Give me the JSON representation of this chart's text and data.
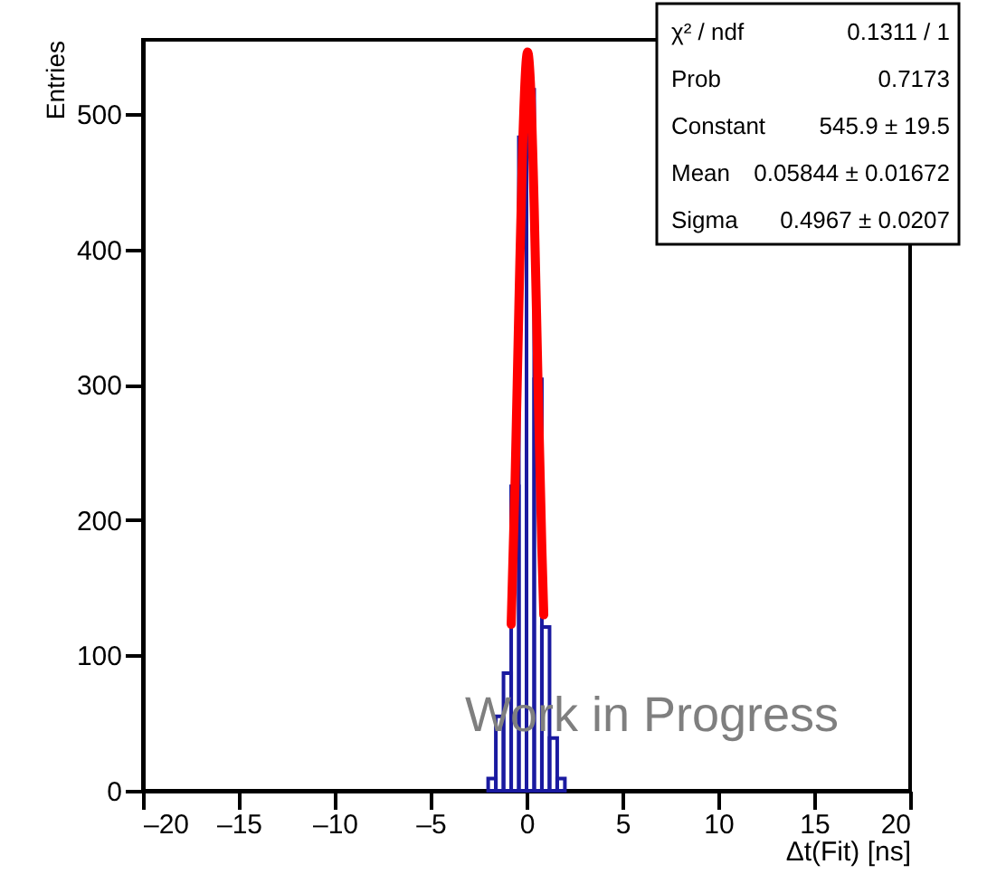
{
  "chart_data": {
    "type": "histogram",
    "xlabel": "Δt(Fit) [ns]",
    "ylabel": "Entries",
    "bins": [
      -2.0,
      -1.6,
      -1.2,
      -0.8,
      -0.4,
      0.0,
      0.4,
      0.8,
      1.2,
      1.6,
      2.0
    ],
    "values": [
      9,
      55,
      87,
      225,
      483,
      518,
      304,
      121,
      39,
      9
    ],
    "color": "#1a1aa0",
    "series": [
      {
        "type": "line",
        "color": "#ff0000",
        "x": [
          -0.8,
          -0.6,
          -0.4,
          -0.2,
          0.0,
          0.0584,
          0.2,
          0.4,
          0.6,
          0.8,
          0.9
        ],
        "values": [
          123,
          227,
          357,
          477,
          542,
          546,
          524,
          431,
          301,
          179,
          130
        ]
      }
    ],
    "xlim": [
      -20,
      20
    ],
    "ylim": [
      0,
      555
    ],
    "xticks": [
      {
        "value": -20,
        "label": "–20"
      },
      {
        "value": -15,
        "label": "–15"
      },
      {
        "value": -10,
        "label": "–10"
      },
      {
        "value": -5,
        "label": "–5"
      },
      0,
      5,
      10,
      15,
      20
    ],
    "yticks": [
      0,
      100,
      200,
      300,
      400,
      500
    ],
    "grid": false,
    "annotations": [
      "χ² / ndf",
      "0.1311 / 1",
      "Prob",
      "0.7173",
      "Constant",
      "545.9 ± 19.5",
      "Mean",
      "0.05844 ± 0.01672",
      "Sigma",
      "0.4967 ± 0.0207",
      "Work in Progress"
    ]
  }
}
